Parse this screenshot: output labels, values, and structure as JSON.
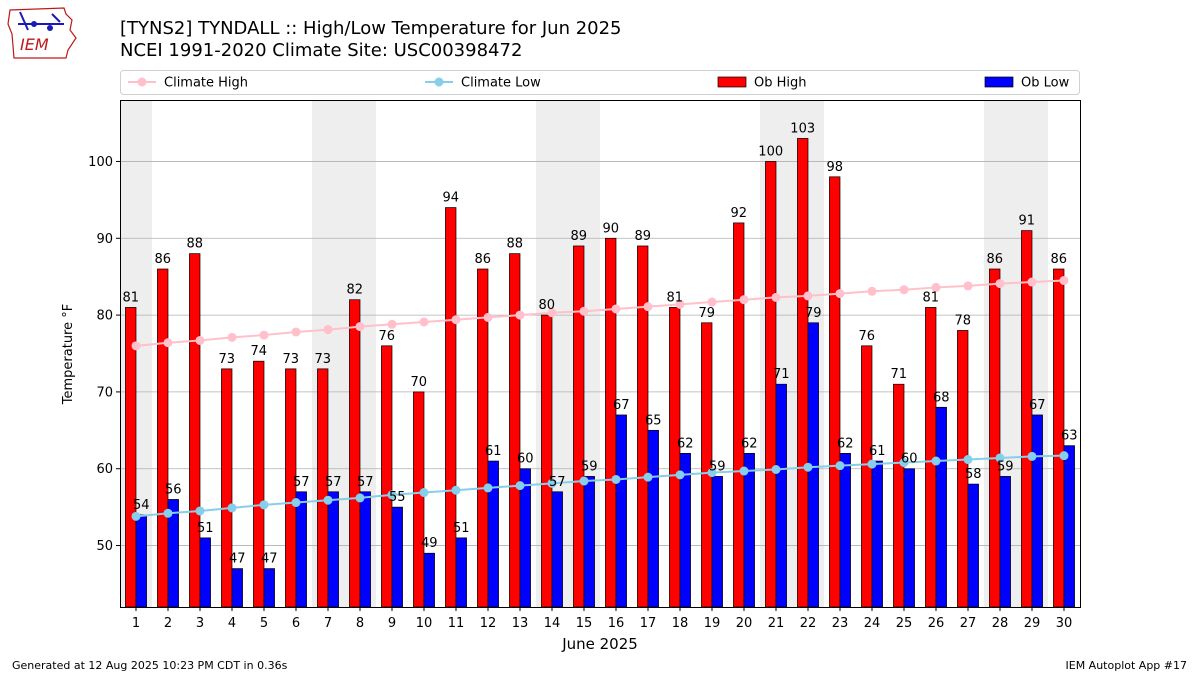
{
  "header": {
    "title_line1": "[TYNS2] TYNDALL :: High/Low Temperature for Jun 2025",
    "title_line2": "NCEI 1991-2020 Climate Site: USC00398472",
    "logo_text": "IEM"
  },
  "footer": {
    "generated": "Generated at 12 Aug 2025 10:23 PM CDT in 0.36s",
    "app": "IEM Autoplot App #17"
  },
  "colors": {
    "ob_high": "#ff0000",
    "ob_low": "#0000ff",
    "climate_high": "#ffc0cb",
    "climate_low": "#87ceeb",
    "weekend_shade": "#eeeeee",
    "grid": "#b0b0b0"
  },
  "chart_data": {
    "type": "bar",
    "xlabel": "June 2025",
    "ylabel": "Temperature °F",
    "ylim": [
      42,
      108
    ],
    "yticks": [
      50,
      60,
      70,
      80,
      90,
      100
    ],
    "grid": "horizontal",
    "legend_placement": "top",
    "categories": [
      1,
      2,
      3,
      4,
      5,
      6,
      7,
      8,
      9,
      10,
      11,
      12,
      13,
      14,
      15,
      16,
      17,
      18,
      19,
      20,
      21,
      22,
      23,
      24,
      25,
      26,
      27,
      28,
      29,
      30
    ],
    "shaded_weekend_days": [
      1,
      7,
      8,
      14,
      15,
      21,
      22,
      28,
      29
    ],
    "series": [
      {
        "name": "Ob High",
        "type": "bar",
        "values": [
          81,
          86,
          88,
          73,
          74,
          73,
          73,
          82,
          76,
          70,
          94,
          86,
          88,
          80,
          89,
          90,
          89,
          81,
          79,
          92,
          100,
          103,
          98,
          76,
          71,
          81,
          78,
          86,
          91,
          86
        ]
      },
      {
        "name": "Ob Low",
        "type": "bar",
        "values": [
          54,
          56,
          51,
          47,
          47,
          57,
          57,
          57,
          55,
          49,
          51,
          61,
          60,
          57,
          59,
          67,
          65,
          62,
          59,
          62,
          71,
          79,
          62,
          61,
          60,
          68,
          58,
          59,
          67,
          63
        ]
      },
      {
        "name": "Climate High",
        "type": "line",
        "values": [
          76.0,
          76.4,
          76.7,
          77.1,
          77.4,
          77.8,
          78.1,
          78.5,
          78.8,
          79.1,
          79.4,
          79.7,
          80.0,
          80.3,
          80.5,
          80.8,
          81.1,
          81.4,
          81.7,
          82.0,
          82.3,
          82.5,
          82.8,
          83.1,
          83.3,
          83.6,
          83.8,
          84.1,
          84.3,
          84.5
        ]
      },
      {
        "name": "Climate Low",
        "type": "line",
        "values": [
          53.8,
          54.2,
          54.5,
          54.9,
          55.3,
          55.6,
          55.9,
          56.2,
          56.6,
          56.9,
          57.2,
          57.5,
          57.8,
          58.1,
          58.4,
          58.6,
          58.9,
          59.2,
          59.5,
          59.7,
          59.9,
          60.2,
          60.4,
          60.6,
          60.8,
          61.0,
          61.2,
          61.4,
          61.6,
          61.7
        ]
      }
    ]
  }
}
